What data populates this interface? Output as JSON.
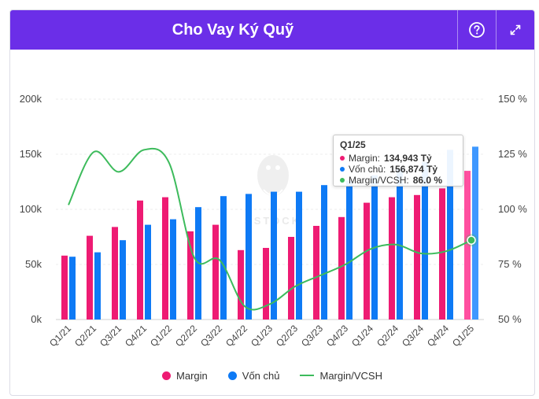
{
  "header": {
    "title": "Cho Vay Ký Quỹ",
    "help_icon": "question-circle-icon",
    "expand_icon": "expand-icon"
  },
  "colors": {
    "margin": "#ee1b73",
    "margin_latest": "#ff4fa0",
    "equity": "#0e7af5",
    "equity_latest": "#3e98ff",
    "ratio": "#3dbb5c",
    "header": "#6b2ee8"
  },
  "legend": {
    "margin": "Margin",
    "equity": "Vốn chủ",
    "ratio": "Margin/VCSH"
  },
  "tooltip": {
    "title": "Q1/25",
    "rows": [
      {
        "label": "Margin:",
        "value": "134,943 Tỷ"
      },
      {
        "label": "Vốn chủ:",
        "value": "156,874 Tỷ"
      },
      {
        "label": "Margin/VCSH:",
        "value": "86.0 %"
      }
    ]
  },
  "chart_data": {
    "type": "bar",
    "title": "Cho Vay Ký Quỹ",
    "categories": [
      "Q1/21",
      "Q2/21",
      "Q3/21",
      "Q4/21",
      "Q1/22",
      "Q2/22",
      "Q3/22",
      "Q4/22",
      "Q1/23",
      "Q2/23",
      "Q3/23",
      "Q4/23",
      "Q1/24",
      "Q2/24",
      "Q3/24",
      "Q4/24",
      "Q1/25"
    ],
    "series": [
      {
        "name": "Margin",
        "type": "bar",
        "axis": "left",
        "values": [
          58000,
          76000,
          84000,
          108000,
          111000,
          80000,
          86000,
          63000,
          65000,
          75000,
          85000,
          93000,
          106000,
          111000,
          113000,
          119000,
          134943
        ]
      },
      {
        "name": "Vốn chủ",
        "type": "bar",
        "axis": "left",
        "values": [
          57000,
          61000,
          72000,
          86000,
          91000,
          102000,
          112000,
          114000,
          116000,
          116000,
          122000,
          126000,
          131000,
          137000,
          143000,
          154000,
          156874
        ]
      },
      {
        "name": "Margin/VCSH",
        "type": "line",
        "axis": "right",
        "values": [
          102,
          126,
          117,
          127,
          121,
          78,
          77,
          56,
          57,
          65,
          70,
          75,
          82,
          84,
          80,
          81,
          86.0
        ]
      }
    ],
    "y_left": {
      "ylim": [
        0,
        200000
      ],
      "ticks": [
        "0k",
        "50k",
        "100k",
        "150k",
        "200k"
      ]
    },
    "y_right": {
      "ylim": [
        50,
        150
      ],
      "ticks": [
        "50 %",
        "75 %",
        "100 %",
        "125 %",
        "150 %"
      ]
    },
    "watermark": "SSTOCK",
    "legend_position": "bottom"
  }
}
